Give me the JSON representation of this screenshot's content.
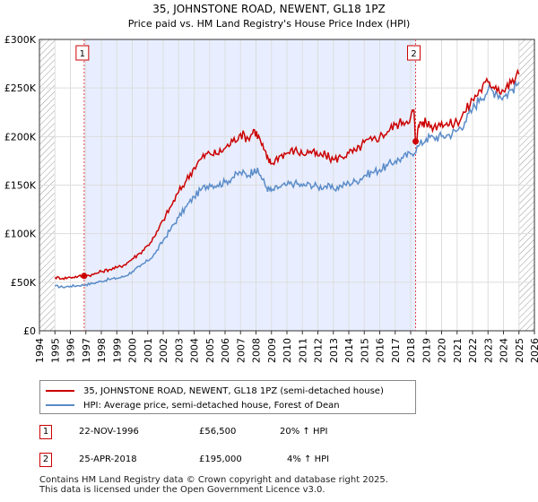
{
  "chart_data": {
    "type": "line",
    "title": "35, JOHNSTONE ROAD, NEWENT, GL18 1PZ",
    "subtitle": "Price paid vs. HM Land Registry's House Price Index (HPI)",
    "xlim": [
      1994,
      2026
    ],
    "ylim": [
      0,
      300000
    ],
    "xticks": [
      "1994",
      "1995",
      "1996",
      "1997",
      "1998",
      "1999",
      "2000",
      "2001",
      "2002",
      "2003",
      "2004",
      "2005",
      "2006",
      "2007",
      "2008",
      "2009",
      "2010",
      "2011",
      "2012",
      "2013",
      "2014",
      "2015",
      "2016",
      "2017",
      "2018",
      "2019",
      "2020",
      "2021",
      "2022",
      "2023",
      "2024",
      "2025",
      "2026"
    ],
    "yticks": [
      {
        "value": 0,
        "label": "£0"
      },
      {
        "value": 50000,
        "label": "£50K"
      },
      {
        "value": 100000,
        "label": "£100K"
      },
      {
        "value": 150000,
        "label": "£150K"
      },
      {
        "value": 200000,
        "label": "£200K"
      },
      {
        "value": 250000,
        "label": "£250K"
      },
      {
        "value": 300000,
        "label": "£300K"
      }
    ],
    "grid": true,
    "colors": {
      "price": "#cc0000",
      "hpi": "#5b8cc8",
      "band": "#e8eeff",
      "hatch": "#999999",
      "vline": "#dd4444"
    },
    "series": [
      {
        "name": "35, JOHNSTONE ROAD, NEWENT, GL18 1PZ (semi-detached house)",
        "color": "#cc0000",
        "x": [
          1995.0,
          1995.5,
          1996.0,
          1996.5,
          1996.89,
          1997.5,
          1998.0,
          1998.5,
          1999.0,
          1999.5,
          2000.0,
          2000.5,
          2001.0,
          2001.5,
          2002.0,
          2002.5,
          2003.0,
          2003.5,
          2004.0,
          2004.5,
          2005.0,
          2005.5,
          2006.0,
          2006.5,
          2007.0,
          2007.5,
          2007.9,
          2008.3,
          2008.7,
          2009.0,
          2009.5,
          2010.0,
          2010.5,
          2011.0,
          2011.5,
          2012.0,
          2012.5,
          2013.0,
          2013.5,
          2014.0,
          2014.5,
          2015.0,
          2015.5,
          2016.0,
          2016.5,
          2017.0,
          2017.5,
          2018.0,
          2018.2,
          2018.32,
          2018.6,
          2019.0,
          2019.5,
          2020.0,
          2020.5,
          2021.0,
          2021.5,
          2022.0,
          2022.5,
          2023.0,
          2023.5,
          2024.0,
          2024.5,
          2025.0
        ],
        "values": [
          55000,
          54000,
          55000,
          56000,
          56500,
          58000,
          61000,
          63000,
          65000,
          68000,
          74000,
          80000,
          88000,
          98000,
          114000,
          128000,
          143000,
          155000,
          168000,
          178000,
          183000,
          182000,
          188000,
          195000,
          203000,
          198000,
          207000,
          195000,
          178000,
          172000,
          180000,
          183000,
          186000,
          182000,
          185000,
          180000,
          181000,
          176000,
          179000,
          183000,
          185000,
          194000,
          196000,
          200000,
          205000,
          212000,
          215000,
          220000,
          228000,
          195000,
          215000,
          214000,
          210000,
          215000,
          212000,
          215000,
          225000,
          238000,
          248000,
          256000,
          252000,
          247000,
          255000,
          264000
        ]
      },
      {
        "name": "HPI: Average price, semi-detached house, Forest of Dean",
        "color": "#5b8cc8",
        "x": [
          1995.0,
          1995.5,
          1996.0,
          1996.5,
          1997.0,
          1997.5,
          1998.0,
          1998.5,
          1999.0,
          1999.5,
          2000.0,
          2000.5,
          2001.0,
          2001.5,
          2002.0,
          2002.5,
          2003.0,
          2003.5,
          2004.0,
          2004.5,
          2005.0,
          2005.5,
          2006.0,
          2006.5,
          2007.0,
          2007.5,
          2007.9,
          2008.3,
          2008.7,
          2009.0,
          2009.5,
          2010.0,
          2010.5,
          2011.0,
          2011.5,
          2012.0,
          2012.5,
          2013.0,
          2013.5,
          2014.0,
          2014.5,
          2015.0,
          2015.5,
          2016.0,
          2016.5,
          2017.0,
          2017.5,
          2018.0,
          2018.5,
          2019.0,
          2019.5,
          2020.0,
          2020.5,
          2021.0,
          2021.5,
          2022.0,
          2022.5,
          2023.0,
          2023.5,
          2024.0,
          2024.5,
          2025.0
        ],
        "values": [
          46000,
          45000,
          46000,
          46500,
          47500,
          49000,
          51000,
          53000,
          54000,
          56000,
          61000,
          66000,
          72000,
          80000,
          93000,
          105000,
          117000,
          128000,
          138000,
          146000,
          151000,
          150000,
          153000,
          158000,
          163000,
          160000,
          167000,
          160000,
          147000,
          144000,
          148000,
          150000,
          152000,
          149000,
          151000,
          148000,
          149000,
          146000,
          149000,
          152000,
          154000,
          160000,
          163000,
          166000,
          170000,
          175000,
          178000,
          182000,
          190000,
          198000,
          199000,
          200000,
          202000,
          206000,
          215000,
          228000,
          240000,
          248000,
          246000,
          241000,
          248000,
          256000
        ]
      }
    ],
    "sales": [
      {
        "label": "1",
        "x": 1996.89,
        "value": 56500
      },
      {
        "label": "2",
        "x": 2018.32,
        "value": 195000
      }
    ],
    "data_end_hatch_from": 2025.0
  },
  "legend": {
    "price_label": "35, JOHNSTONE ROAD, NEWENT, GL18 1PZ (semi-detached house)",
    "hpi_label": "HPI: Average price, semi-detached house, Forest of Dean"
  },
  "transactions": [
    {
      "num": "1",
      "date": "22-NOV-1996",
      "price": "£56,500",
      "change": "20% ↑ HPI"
    },
    {
      "num": "2",
      "date": "25-APR-2018",
      "price": "£195,000",
      "change": "4% ↑ HPI"
    }
  ],
  "footer": {
    "line1": "Contains HM Land Registry data © Crown copyright and database right 2025.",
    "line2": "This data is licensed under the Open Government Licence v3.0."
  }
}
